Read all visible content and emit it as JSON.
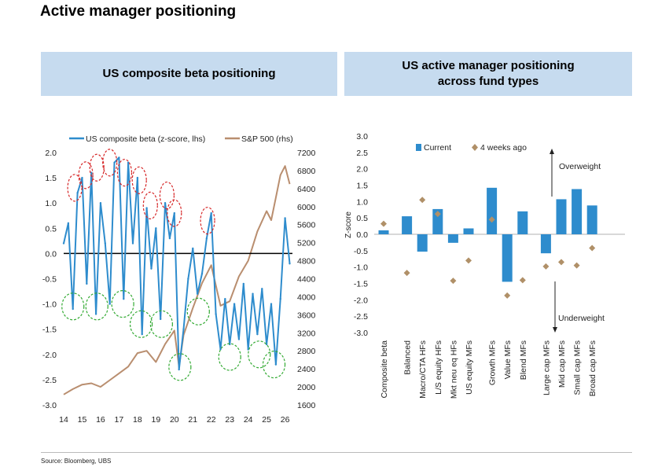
{
  "page": {
    "title": "Active manager positioning",
    "source": "Source: Bloomberg, UBS"
  },
  "panels": {
    "left": {
      "header": "US composite beta positioning"
    },
    "right": {
      "header_line1": "US active manager positioning",
      "header_line2": "across fund types"
    }
  },
  "colors": {
    "beta": "#2e8ccd",
    "spx": "#b98e6f",
    "bar": "#2e8ccd",
    "diamond": "#b09068",
    "header_bg": "#c6dbef",
    "red_circle": "#d62728",
    "green_circle": "#33aa33"
  },
  "chart_data": [
    {
      "id": "beta_chart",
      "type": "line",
      "title": "US composite beta positioning",
      "legend": [
        "US composite beta (z-score, lhs)",
        "S&P 500 (rhs)"
      ],
      "x_ticks": [
        "14",
        "15",
        "16",
        "17",
        "18",
        "19",
        "20",
        "21",
        "22",
        "23",
        "24",
        "25",
        "26"
      ],
      "xlim": [
        2014,
        2026.4
      ],
      "y_left": {
        "ticks": [
          "2.0",
          "1.5",
          "1.0",
          "0.5",
          "0.0",
          "-0.5",
          "-1.0",
          "-1.5",
          "-2.0",
          "-2.5",
          "-3.0"
        ],
        "ylim": [
          -3.0,
          2.0
        ]
      },
      "y_right": {
        "ticks": [
          "7200",
          "6800",
          "6400",
          "6000",
          "5600",
          "5200",
          "4800",
          "4400",
          "4000",
          "3600",
          "3200",
          "2800",
          "2400",
          "2000",
          "1600"
        ],
        "ylim": [
          1600,
          7200
        ]
      },
      "series": [
        {
          "name": "US composite beta (z-score, lhs)",
          "axis": "left",
          "x": [
            2014.0,
            2014.25,
            2014.5,
            2014.75,
            2015.0,
            2015.25,
            2015.5,
            2015.75,
            2016.0,
            2016.25,
            2016.5,
            2016.75,
            2017.0,
            2017.25,
            2017.5,
            2017.75,
            2018.0,
            2018.25,
            2018.5,
            2018.75,
            2019.0,
            2019.25,
            2019.5,
            2019.75,
            2020.0,
            2020.25,
            2020.5,
            2020.75,
            2021.0,
            2021.25,
            2021.5,
            2021.75,
            2022.0,
            2022.25,
            2022.5,
            2022.75,
            2023.0,
            2023.25,
            2023.5,
            2023.75,
            2024.0,
            2024.25,
            2024.5,
            2024.75,
            2025.0,
            2025.25,
            2025.5,
            2025.75,
            2026.0,
            2026.25
          ],
          "y": [
            0.2,
            0.6,
            -1.1,
            1.2,
            1.5,
            -0.6,
            1.6,
            -1.2,
            1.0,
            0.2,
            -1.0,
            1.8,
            1.9,
            -0.9,
            1.8,
            0.2,
            1.5,
            -1.6,
            0.9,
            -0.3,
            0.5,
            -1.3,
            1.0,
            0.3,
            0.8,
            -2.3,
            -1.5,
            -0.5,
            0.1,
            -0.8,
            -0.4,
            0.3,
            0.8,
            -1.2,
            -1.9,
            -0.9,
            -1.8,
            -1.0,
            -1.7,
            -0.6,
            -1.9,
            -0.8,
            -1.6,
            -0.7,
            -1.8,
            -1.0,
            -2.2,
            -0.9,
            0.7,
            -0.2
          ]
        },
        {
          "name": "S&P 500 (rhs)",
          "axis": "right",
          "x": [
            2014.0,
            2014.5,
            2015.0,
            2015.5,
            2016.0,
            2016.5,
            2017.0,
            2017.5,
            2018.0,
            2018.5,
            2019.0,
            2019.5,
            2020.0,
            2020.25,
            2020.5,
            2021.0,
            2021.5,
            2022.0,
            2022.5,
            2023.0,
            2023.5,
            2024.0,
            2024.5,
            2025.0,
            2025.25,
            2025.5,
            2025.75,
            2026.0,
            2026.25
          ],
          "y": [
            1830,
            1950,
            2050,
            2080,
            2000,
            2150,
            2300,
            2450,
            2750,
            2800,
            2550,
            2950,
            3250,
            2450,
            3150,
            3750,
            4300,
            4700,
            3800,
            3900,
            4450,
            4800,
            5450,
            5900,
            5700,
            6200,
            6700,
            6900,
            6500
          ]
        }
      ],
      "annotations": {
        "red_circles": [
          {
            "x": 2014.6,
            "y": 1.3
          },
          {
            "x": 2015.2,
            "y": 1.55
          },
          {
            "x": 2015.8,
            "y": 1.7
          },
          {
            "x": 2016.5,
            "y": 1.8
          },
          {
            "x": 2017.3,
            "y": 1.6
          },
          {
            "x": 2018.1,
            "y": 1.45
          },
          {
            "x": 2018.7,
            "y": 0.95
          },
          {
            "x": 2019.6,
            "y": 1.15
          },
          {
            "x": 2020.0,
            "y": 0.8
          },
          {
            "x": 2021.8,
            "y": 0.65
          }
        ],
        "green_circles": [
          {
            "x": 2014.5,
            "y": -1.05
          },
          {
            "x": 2015.8,
            "y": -1.05
          },
          {
            "x": 2017.2,
            "y": -1.0
          },
          {
            "x": 2018.2,
            "y": -1.4
          },
          {
            "x": 2019.3,
            "y": -1.4
          },
          {
            "x": 2020.3,
            "y": -2.25
          },
          {
            "x": 2021.3,
            "y": -1.15
          },
          {
            "x": 2023.0,
            "y": -2.05
          },
          {
            "x": 2024.6,
            "y": -2.0
          },
          {
            "x": 2025.4,
            "y": -2.2
          }
        ]
      }
    },
    {
      "id": "fund_chart",
      "type": "bar",
      "categories": [
        "Composite beta",
        "Balanced",
        "Macro/CTA HFs",
        "L/S equity HFs",
        "Mkt neu eq HFs",
        "US equity MFs",
        "Growth MFs",
        "Value MFs",
        "Blend MFs",
        "Large cap MFs",
        "Mid cap MFs",
        "Small cap MFs",
        "Broad cap MFs"
      ],
      "groups": [
        0,
        1,
        1,
        1,
        1,
        1,
        2,
        2,
        2,
        3,
        3,
        3,
        3
      ],
      "series": [
        {
          "name": "Current",
          "values": [
            0.12,
            0.55,
            -0.53,
            0.77,
            -0.26,
            0.18,
            1.42,
            -1.45,
            0.7,
            -0.58,
            1.07,
            1.38,
            0.88
          ]
        },
        {
          "name": "4 weeks ago",
          "values": [
            0.32,
            -1.18,
            1.05,
            0.62,
            -1.42,
            -0.8,
            0.45,
            -1.87,
            -1.4,
            -0.98,
            -0.85,
            -0.95,
            -0.42
          ]
        }
      ],
      "ylabel": "Z-score",
      "ylim": [
        -3.0,
        3.0
      ],
      "y_ticks": [
        "3.0",
        "2.5",
        "2.0",
        "1.5",
        "1.0",
        "0.5",
        "0.0",
        "-0.5",
        "-1.0",
        "-1.5",
        "-2.0",
        "-2.5",
        "-3.0"
      ],
      "annotations": {
        "up": "Overweight",
        "down": "Underweight"
      },
      "legend": [
        "Current",
        "4 weeks ago"
      ]
    }
  ]
}
